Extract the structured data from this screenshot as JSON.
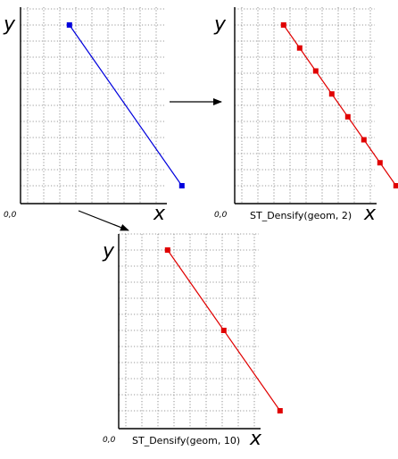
{
  "diagram": {
    "labels": {
      "x_axis": "x",
      "y_axis": "y",
      "origin": "0,0"
    },
    "colors": {
      "original": "#0000dd",
      "densified": "#e00000",
      "grid": "#777777",
      "axis": "#000000"
    },
    "panels": [
      {
        "id": "original",
        "caption": "",
        "line_color": "#0000dd",
        "points": [
          [
            1,
            11
          ],
          [
            8,
            1
          ]
        ]
      },
      {
        "id": "densify-2",
        "caption": "ST_Densify(geom, 2)",
        "line_color": "#e00000",
        "points": [
          [
            1,
            11
          ],
          [
            2,
            9.57
          ],
          [
            3,
            8.14
          ],
          [
            4,
            6.71
          ],
          [
            5,
            5.29
          ],
          [
            6,
            3.86
          ],
          [
            7,
            2.43
          ],
          [
            8,
            1
          ]
        ]
      },
      {
        "id": "densify-10",
        "caption": "ST_Densify(geom, 10)",
        "line_color": "#e00000",
        "points": [
          [
            1,
            11
          ],
          [
            4.5,
            6
          ],
          [
            8,
            1
          ]
        ]
      }
    ]
  }
}
